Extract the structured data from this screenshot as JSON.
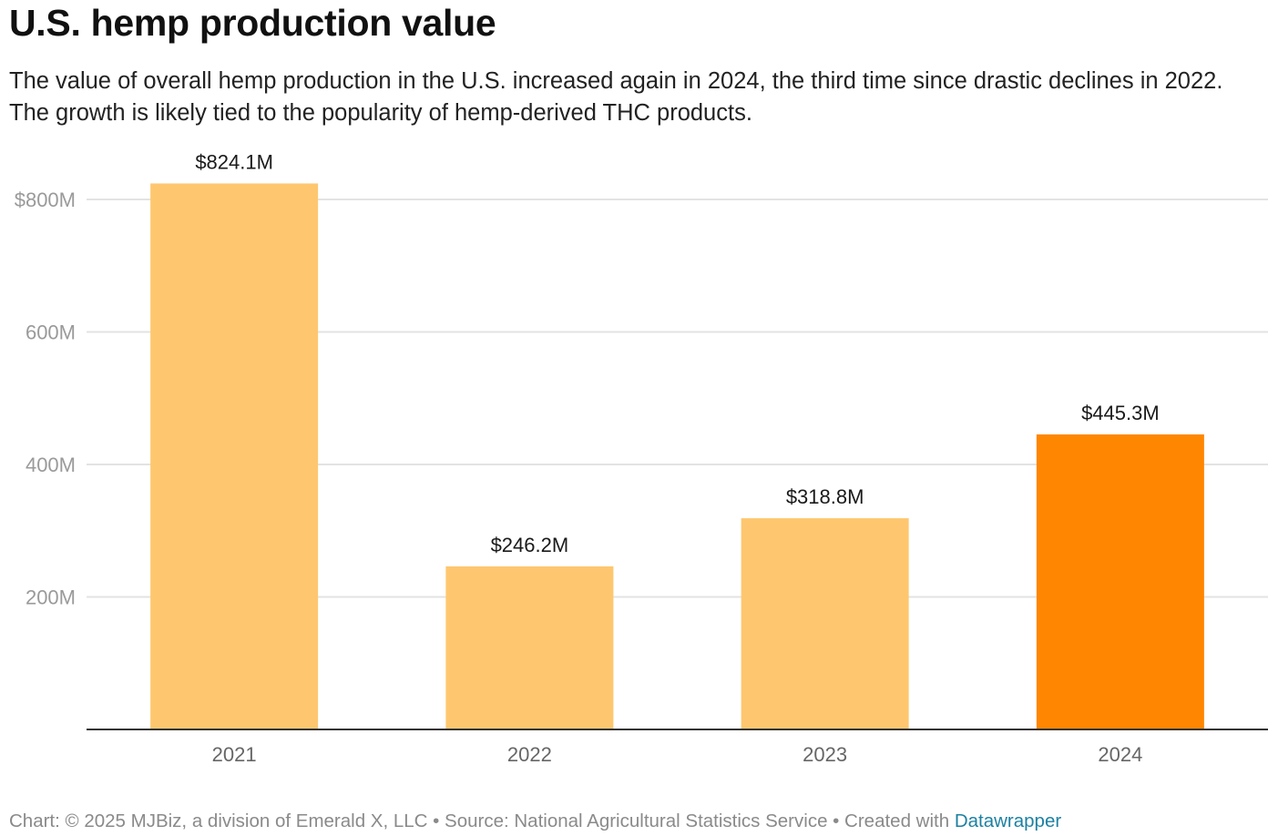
{
  "title": "U.S. hemp production value",
  "subtitle": "The value of overall hemp production in the U.S. increased again in 2024, the third time since drastic declines in 2022. The growth is likely tied to the popularity of hemp-derived THC products.",
  "footer": {
    "prefix": "Chart: © 2025 MJBiz, a division of Emerald X, LLC • Source: National Agricultural Statistics Service • Created with ",
    "link": "Datawrapper"
  },
  "colors": {
    "bar": "#fec76f",
    "highlight": "#ff8600",
    "grid": "#e3e3e3",
    "axis": "#333333"
  },
  "chart_data": {
    "type": "bar",
    "title": "U.S. hemp production value",
    "xlabel": "",
    "ylabel": "",
    "categories": [
      "2021",
      "2022",
      "2023",
      "2024"
    ],
    "values": [
      824.1,
      246.2,
      318.8,
      445.3
    ],
    "value_labels": [
      "$824.1M",
      "$246.2M",
      "$318.8M",
      "$445.3M"
    ],
    "highlight_index": 3,
    "ylim": [
      0,
      800
    ],
    "yticks": [
      200,
      400,
      600,
      800
    ],
    "ytick_labels": [
      "200M",
      "400M",
      "600M",
      "$800M"
    ],
    "grid": true,
    "legend": "none"
  }
}
